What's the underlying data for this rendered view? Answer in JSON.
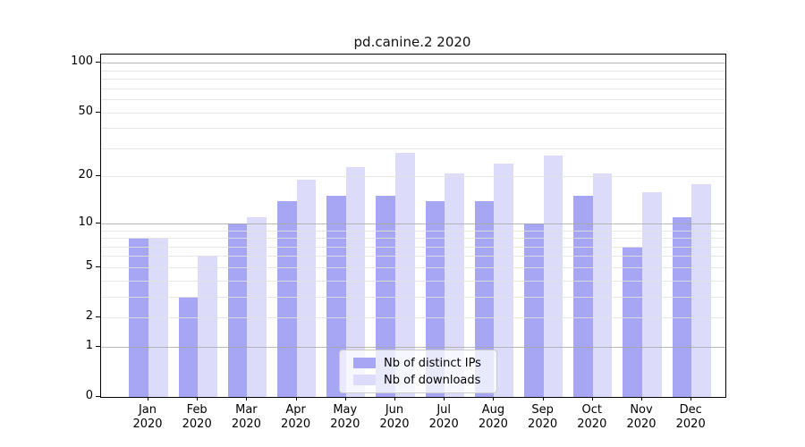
{
  "title": "pd.canine.2 2020",
  "chart_data": {
    "type": "bar",
    "title": "pd.canine.2 2020",
    "categories": [
      "Jan",
      "Feb",
      "Mar",
      "Apr",
      "May",
      "Jun",
      "Jul",
      "Aug",
      "Sep",
      "Oct",
      "Nov",
      "Dec"
    ],
    "year": "2020",
    "series": [
      {
        "name": "Nb of distinct IPs",
        "color": "#a7a6f4",
        "values": [
          8,
          3,
          10,
          14,
          15,
          15,
          14,
          14,
          10,
          15,
          7,
          11
        ]
      },
      {
        "name": "Nb of downloads",
        "color": "#dcdbf9",
        "values": [
          8,
          6,
          11,
          19,
          23,
          28,
          21,
          24,
          27,
          21,
          16,
          18
        ]
      }
    ],
    "y_axis": {
      "scale": "log10(value+1)",
      "tick_values": [
        0,
        1,
        2,
        5,
        10,
        20,
        50,
        100
      ],
      "tick_labels": [
        "0",
        "1",
        "2",
        "5",
        "10",
        "20",
        "50",
        "100"
      ],
      "major_gridlines": [
        1,
        10,
        100
      ],
      "minor_gridlines": [
        2,
        3,
        4,
        5,
        6,
        7,
        8,
        9,
        20,
        30,
        40,
        50,
        60,
        70,
        80,
        90
      ],
      "ylim": [
        0,
        120
      ]
    },
    "xlabel": "",
    "ylabel": "",
    "grid": true,
    "legend": {
      "position": "lower-center",
      "entries": [
        "Nb of distinct IPs",
        "Nb of downloads"
      ]
    },
    "colors": {
      "bar_distinct_ips": "#a7a6f4",
      "bar_downloads": "#dcdbf9",
      "major_grid": "#a8a8a8",
      "minor_grid": "#e3e3e3",
      "axis": "#000000",
      "background": "#ffffff"
    }
  }
}
